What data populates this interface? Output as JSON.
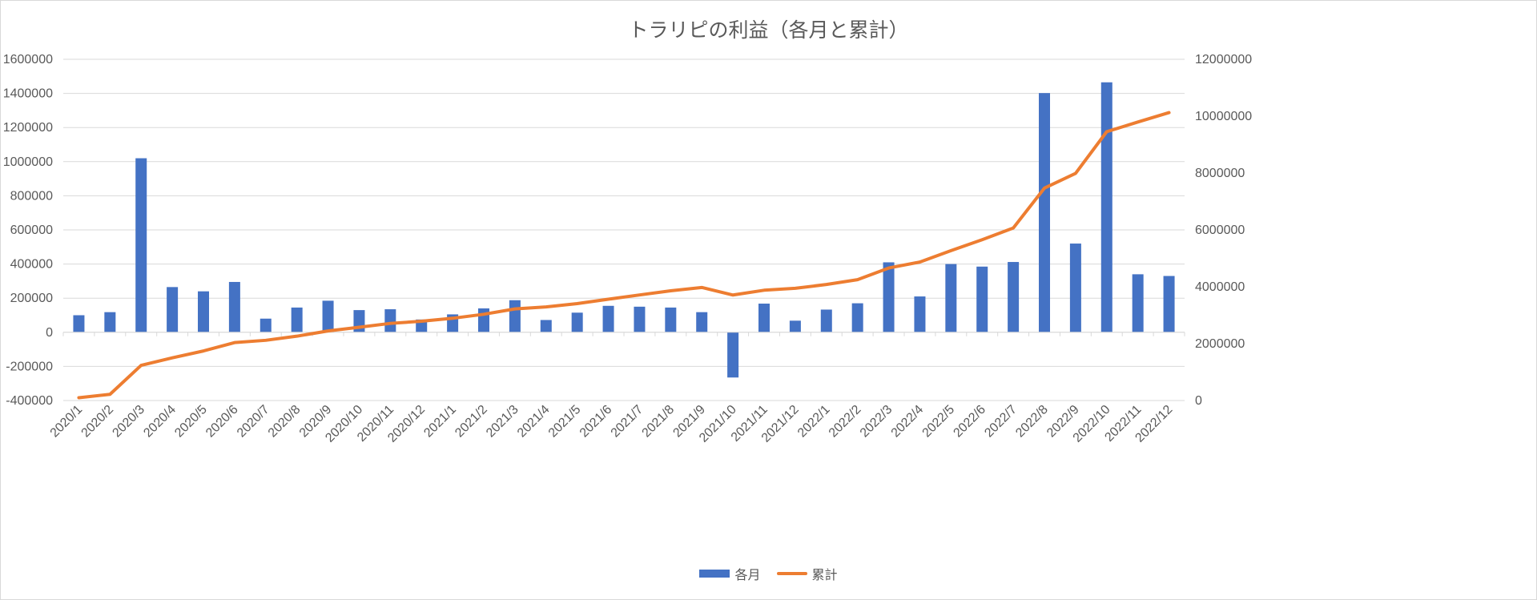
{
  "chart_data": {
    "type": "bar+line",
    "title": "トラリピの利益（各月と累計）",
    "categories": [
      "2020/1",
      "2020/2",
      "2020/3",
      "2020/4",
      "2020/5",
      "2020/6",
      "2020/7",
      "2020/8",
      "2020/9",
      "2020/10",
      "2020/11",
      "2020/12",
      "2021/1",
      "2021/2",
      "2021/3",
      "2021/4",
      "2021/5",
      "2021/6",
      "2021/7",
      "2021/8",
      "2021/9",
      "2021/10",
      "2021/11",
      "2021/12",
      "2022/1",
      "2022/2",
      "2022/3",
      "2022/4",
      "2022/5",
      "2022/6",
      "2022/7",
      "2022/8",
      "2022/9",
      "2022/10",
      "2022/11",
      "2022/12"
    ],
    "series": [
      {
        "name": "各月",
        "type": "bar",
        "axis": "left",
        "color": "#4472c4",
        "values": [
          100000,
          118000,
          1020000,
          265000,
          240000,
          295000,
          80000,
          145000,
          185000,
          130000,
          135000,
          75000,
          105000,
          140000,
          188000,
          72000,
          115000,
          155000,
          150000,
          145000,
          118000,
          -265000,
          168000,
          68000,
          133000,
          170000,
          410000,
          210000,
          400000,
          385000,
          412000,
          1402000,
          520000,
          1465000,
          340000,
          330000
        ]
      },
      {
        "name": "累計",
        "type": "line",
        "axis": "right",
        "color": "#ed7d31",
        "values": [
          100000,
          218000,
          1238000,
          1503000,
          1743000,
          2038000,
          2118000,
          2263000,
          2448000,
          2578000,
          2713000,
          2788000,
          2893000,
          3033000,
          3221000,
          3293000,
          3408000,
          3563000,
          3713000,
          3858000,
          3976000,
          3711000,
          3879000,
          3947000,
          4080000,
          4250000,
          4660000,
          4870000,
          5270000,
          5655000,
          6067000,
          7469000,
          7989000,
          9454000,
          9794000,
          10124000
        ]
      }
    ],
    "y_left": {
      "min": -400000,
      "max": 1600000,
      "step": 200000,
      "ticks": [
        "-400000",
        "-200000",
        "0",
        "200000",
        "400000",
        "600000",
        "800000",
        "1000000",
        "1200000",
        "1400000",
        "1600000"
      ]
    },
    "y_right": {
      "min": 0,
      "max": 12000000,
      "step": 2000000,
      "ticks": [
        "0",
        "2000000",
        "4000000",
        "6000000",
        "8000000",
        "10000000",
        "12000000"
      ]
    },
    "grid": true,
    "legend_position": "bottom"
  }
}
